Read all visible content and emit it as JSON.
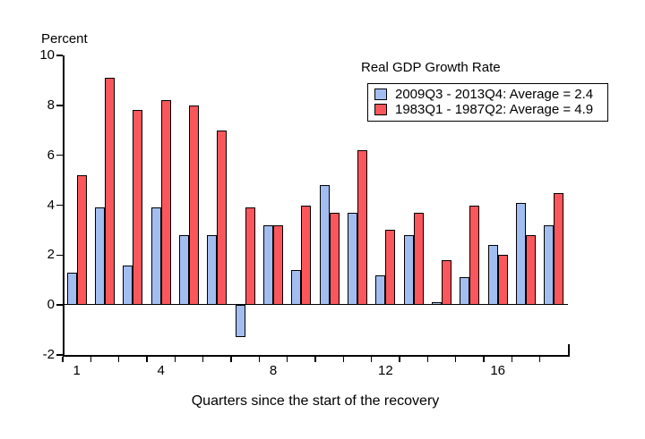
{
  "chart_data": {
    "type": "bar",
    "title": "Real GDP Growth Rate",
    "ylabel": "Percent",
    "xlabel": "Quarters since the start of the recovery",
    "categories": [
      1,
      2,
      3,
      4,
      5,
      6,
      7,
      8,
      9,
      10,
      11,
      12,
      13,
      14,
      15,
      16,
      17,
      18
    ],
    "x_ticks": [
      1,
      4,
      8,
      12,
      16
    ],
    "y_ticks": [
      10,
      8,
      6,
      4,
      2,
      0,
      -2
    ],
    "ylim": [
      -2,
      10
    ],
    "grid": false,
    "legend": {
      "title": "Real GDP Growth Rate",
      "position": "top-right",
      "entries": [
        {
          "label": "2009Q3 - 2013Q4: Average = 2.4",
          "color": "#A2BEF0"
        },
        {
          "label": "1983Q1 - 1987Q2: Average = 4.9",
          "color": "#F9575C"
        }
      ]
    },
    "series": [
      {
        "name": "2009Q3 - 2013Q4",
        "average": 2.4,
        "color": "#A2BEF0",
        "values": [
          1.3,
          3.9,
          1.6,
          3.9,
          2.8,
          2.8,
          -1.3,
          3.2,
          1.4,
          4.8,
          3.7,
          1.2,
          2.8,
          0.1,
          1.1,
          2.4,
          4.1,
          3.2
        ]
      },
      {
        "name": "1983Q1 - 1987Q2",
        "average": 4.9,
        "color": "#F9575C",
        "values": [
          5.2,
          9.1,
          7.8,
          8.2,
          8.0,
          7.0,
          3.9,
          3.2,
          4.0,
          3.7,
          6.2,
          3.0,
          3.7,
          1.8,
          4.0,
          2.0,
          2.8,
          4.5
        ]
      }
    ]
  },
  "colors": {
    "axis": "#000000",
    "text": "#000000",
    "background": "#ffffff"
  }
}
